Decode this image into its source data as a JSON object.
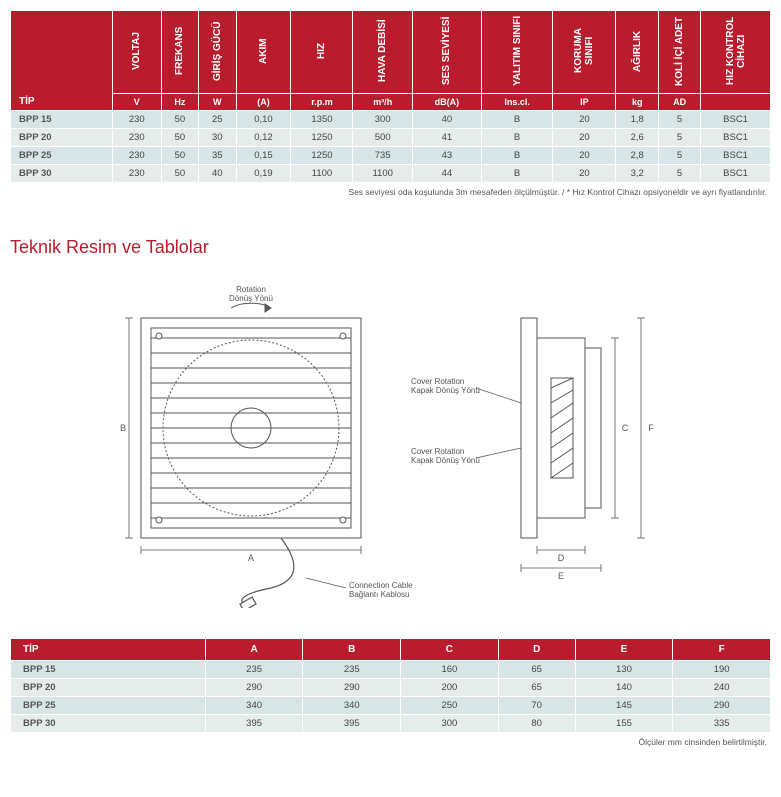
{
  "colors": {
    "brand_red": "#b91c2c",
    "row_even": "#d8e5e7",
    "row_odd": "#e5ecea",
    "text": "#444444",
    "background": "#ffffff"
  },
  "spec_table": {
    "tip_label": "TİP",
    "headers": [
      {
        "label": "VOLTAJ",
        "unit": "V"
      },
      {
        "label": "FREKANS",
        "unit": "Hz"
      },
      {
        "label": "GİRİŞ GÜCÜ",
        "unit": "W"
      },
      {
        "label": "AKIM",
        "unit": "(A)"
      },
      {
        "label": "HIZ",
        "unit": "r.p.m"
      },
      {
        "label": "HAVA DEBİSİ",
        "unit": "m³/h"
      },
      {
        "label": "SES SEVİYESİ",
        "unit": "dB(A)"
      },
      {
        "label": "YALITIM SINIFI",
        "unit": "Ins.cl."
      },
      {
        "label": "KORUMA SINIFI",
        "unit": "IP"
      },
      {
        "label": "AĞIRLIK",
        "unit": "kg"
      },
      {
        "label": "KOLİ İÇİ ADET",
        "unit": "AD"
      },
      {
        "label": "HIZ KONTROL CİHAZI",
        "unit": ""
      }
    ],
    "rows": [
      {
        "tip": "BPP 15",
        "vals": [
          "230",
          "50",
          "25",
          "0,10",
          "1350",
          "300",
          "40",
          "B",
          "20",
          "1,8",
          "5",
          "BSC1"
        ]
      },
      {
        "tip": "BPP 20",
        "vals": [
          "230",
          "50",
          "30",
          "0,12",
          "1250",
          "500",
          "41",
          "B",
          "20",
          "2,6",
          "5",
          "BSC1"
        ]
      },
      {
        "tip": "BPP 25",
        "vals": [
          "230",
          "50",
          "35",
          "0,15",
          "1250",
          "735",
          "43",
          "B",
          "20",
          "2,8",
          "5",
          "BSC1"
        ]
      },
      {
        "tip": "BPP 30",
        "vals": [
          "230",
          "50",
          "40",
          "0,19",
          "1100",
          "1100",
          "44",
          "B",
          "20",
          "3,2",
          "5",
          "BSC1"
        ]
      }
    ],
    "footnote": "Ses seviyesi oda koşulunda 3m mesafeden ölçülmüştür. / * Hız Kontrol Cihazı opsiyoneldir ve ayrı fiyatlandırılır."
  },
  "section_title": "Teknik Resim ve Tablolar",
  "diagram": {
    "rotation_label_1": "Rotation",
    "rotation_label_2": "Dönüş Yönü",
    "cover_rotation_label_1": "Cover Rotation",
    "cover_rotation_label_2": "Kapak Dönüş Yönü",
    "cable_label_1": "Connection Cable",
    "cable_label_2": "Bağlantı Kablosu",
    "dim_A": "A",
    "dim_B": "B",
    "dim_C": "C",
    "dim_D": "D",
    "dim_E": "E",
    "dim_F": "F"
  },
  "dim_table": {
    "tip_label": "TİP",
    "headers": [
      "A",
      "B",
      "C",
      "D",
      "E",
      "F"
    ],
    "rows": [
      {
        "tip": "BPP 15",
        "vals": [
          "235",
          "235",
          "160",
          "65",
          "130",
          "190"
        ]
      },
      {
        "tip": "BPP 20",
        "vals": [
          "290",
          "290",
          "200",
          "65",
          "140",
          "240"
        ]
      },
      {
        "tip": "BPP 25",
        "vals": [
          "340",
          "340",
          "250",
          "70",
          "145",
          "290"
        ]
      },
      {
        "tip": "BPP 30",
        "vals": [
          "395",
          "395",
          "300",
          "80",
          "155",
          "335"
        ]
      }
    ],
    "footnote": "Ölçüler mm cinsinden belirtilmiştir."
  }
}
